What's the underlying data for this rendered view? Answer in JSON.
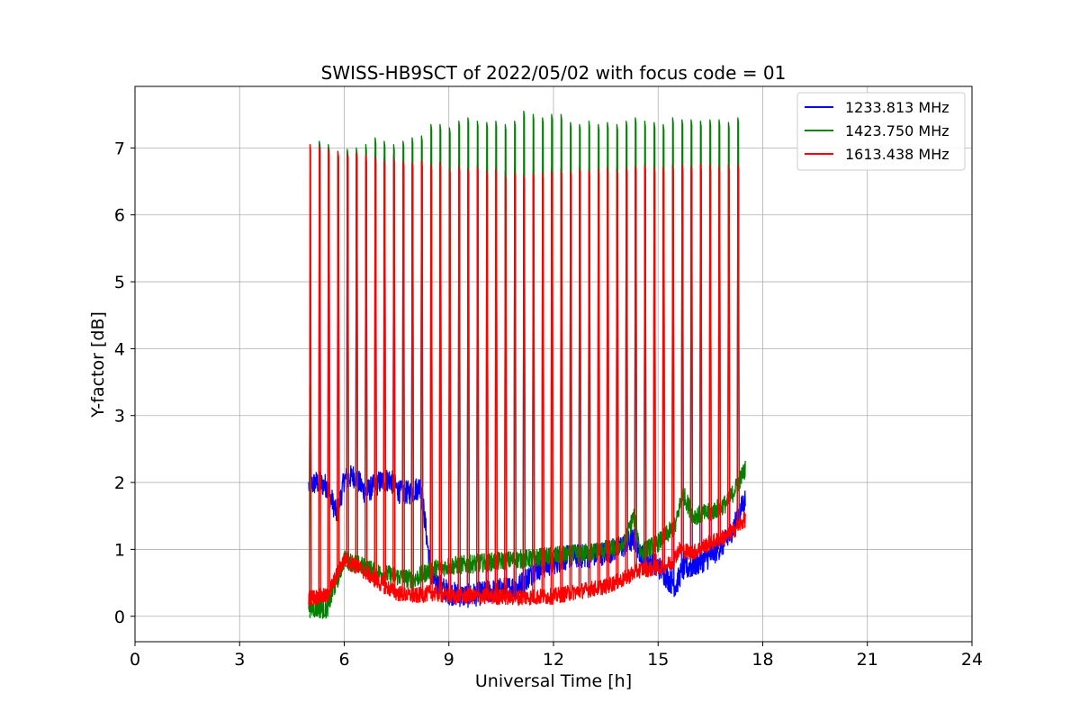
{
  "chart_data": {
    "type": "line",
    "title": "SWISS-HB9SCT of 2022/05/02 with focus code = 01",
    "xlabel": "Universal Time [h]",
    "ylabel": "Y-factor [dB]",
    "xlim": [
      0,
      24
    ],
    "ylim": [
      -0.38,
      7.92
    ],
    "xticks": [
      0,
      3,
      6,
      9,
      12,
      15,
      18,
      21,
      24
    ],
    "yticks": [
      0,
      1,
      2,
      3,
      4,
      5,
      6,
      7
    ],
    "grid": true,
    "legend_position": "top-right",
    "cal_pulse_times_h": [
      5.0,
      5.27,
      5.53,
      5.8,
      6.07,
      6.33,
      6.6,
      6.87,
      7.13,
      7.4,
      7.67,
      7.93,
      8.2,
      8.47,
      8.73,
      9.0,
      9.27,
      9.53,
      9.8,
      10.07,
      10.33,
      10.6,
      10.87,
      11.13,
      11.4,
      11.67,
      11.93,
      12.2,
      12.47,
      12.73,
      13.0,
      13.27,
      13.53,
      13.8,
      14.07,
      14.33,
      14.6,
      14.87,
      15.13,
      15.4,
      15.67,
      15.93,
      16.2,
      16.47,
      16.73,
      17.0,
      17.27
    ],
    "series": [
      {
        "name": "1233.813 MHz",
        "color": "#0000ff",
        "baseline_x": [
          5.0,
          5.2,
          5.5,
          5.8,
          6.0,
          6.3,
          6.6,
          7.0,
          7.3,
          7.6,
          7.9,
          8.2,
          8.5,
          9.0,
          9.5,
          10.0,
          10.5,
          11.0,
          11.5,
          12.0,
          12.5,
          13.0,
          13.5,
          14.0,
          14.3,
          14.6,
          15.0,
          15.3,
          15.5,
          15.7,
          16.0,
          16.5,
          17.0,
          17.5
        ],
        "baseline_y": [
          1.95,
          2.0,
          1.95,
          1.5,
          2.05,
          2.1,
          1.85,
          2.0,
          2.05,
          1.85,
          1.85,
          1.95,
          0.55,
          0.35,
          0.3,
          0.35,
          0.4,
          0.45,
          0.7,
          0.8,
          0.9,
          0.9,
          0.95,
          1.05,
          1.15,
          0.85,
          0.75,
          0.55,
          0.45,
          0.7,
          0.75,
          0.9,
          1.15,
          1.75
        ],
        "noise": 0.18,
        "peaks": [
          3.45,
          7.08,
          7.0,
          6.9,
          6.95,
          6.9,
          6.85,
          6.9,
          6.85,
          6.9,
          6.8,
          6.75,
          6.8,
          6.75,
          6.78,
          6.7,
          6.72,
          6.7,
          6.75,
          6.68,
          6.7,
          6.65,
          6.7,
          6.6,
          6.65,
          6.62,
          6.7,
          6.7,
          6.65,
          6.72,
          6.68,
          6.7,
          6.72,
          6.7,
          6.7,
          6.72,
          6.75,
          6.72,
          6.7,
          6.75,
          6.72,
          6.72,
          6.75,
          6.72,
          6.72,
          6.75,
          6.72
        ]
      },
      {
        "name": "1423.750 MHz",
        "color": "#008000",
        "baseline_x": [
          5.0,
          5.5,
          6.0,
          6.5,
          7.0,
          7.5,
          8.0,
          8.5,
          9.0,
          10.0,
          11.0,
          12.0,
          13.0,
          14.0,
          14.3,
          14.5,
          15.0,
          15.5,
          15.7,
          16.0,
          16.5,
          17.0,
          17.5
        ],
        "baseline_y": [
          0.12,
          0.1,
          0.85,
          0.75,
          0.65,
          0.6,
          0.55,
          0.7,
          0.75,
          0.8,
          0.85,
          0.9,
          0.95,
          1.05,
          1.5,
          0.95,
          1.1,
          1.35,
          1.85,
          1.5,
          1.55,
          1.7,
          2.2
        ],
        "noise": 0.14,
        "peaks": [
          3.45,
          7.1,
          7.05,
          6.95,
          6.98,
          7.0,
          7.05,
          7.15,
          7.1,
          7.05,
          7.1,
          7.15,
          7.18,
          7.35,
          7.35,
          7.3,
          7.4,
          7.45,
          7.4,
          7.38,
          7.4,
          7.35,
          7.4,
          7.55,
          7.5,
          7.45,
          7.5,
          7.5,
          7.38,
          7.35,
          7.4,
          7.35,
          7.38,
          7.35,
          7.4,
          7.45,
          7.4,
          7.38,
          7.35,
          7.45,
          7.42,
          7.42,
          7.4,
          7.42,
          7.42,
          7.38,
          7.45
        ]
      },
      {
        "name": "1613.438 MHz",
        "color": "#ff0000",
        "baseline_x": [
          5.0,
          5.5,
          6.0,
          6.5,
          7.0,
          7.5,
          8.0,
          8.5,
          9.0,
          10.0,
          11.0,
          12.0,
          12.5,
          13.0,
          13.5,
          14.0,
          14.3,
          14.5,
          15.0,
          15.4,
          15.6,
          16.0,
          16.5,
          17.0,
          17.5
        ],
        "baseline_y": [
          0.28,
          0.3,
          0.85,
          0.7,
          0.5,
          0.35,
          0.3,
          0.35,
          0.3,
          0.3,
          0.28,
          0.3,
          0.35,
          0.4,
          0.45,
          0.55,
          0.65,
          0.7,
          0.72,
          0.8,
          1.0,
          0.95,
          1.1,
          1.2,
          1.45
        ],
        "noise": 0.12,
        "peaks": [
          7.05,
          7.02,
          6.98,
          6.95,
          6.9,
          6.92,
          6.88,
          6.85,
          6.8,
          6.85,
          6.8,
          6.78,
          6.8,
          6.75,
          6.78,
          6.7,
          6.72,
          6.68,
          6.7,
          6.65,
          6.68,
          6.6,
          6.62,
          6.58,
          6.6,
          6.62,
          6.65,
          6.68,
          6.65,
          6.68,
          6.65,
          6.68,
          6.7,
          6.68,
          6.7,
          6.72,
          6.72,
          6.7,
          6.72,
          6.75,
          6.75,
          6.72,
          6.75,
          6.75,
          6.72,
          6.75,
          6.75
        ]
      }
    ]
  }
}
